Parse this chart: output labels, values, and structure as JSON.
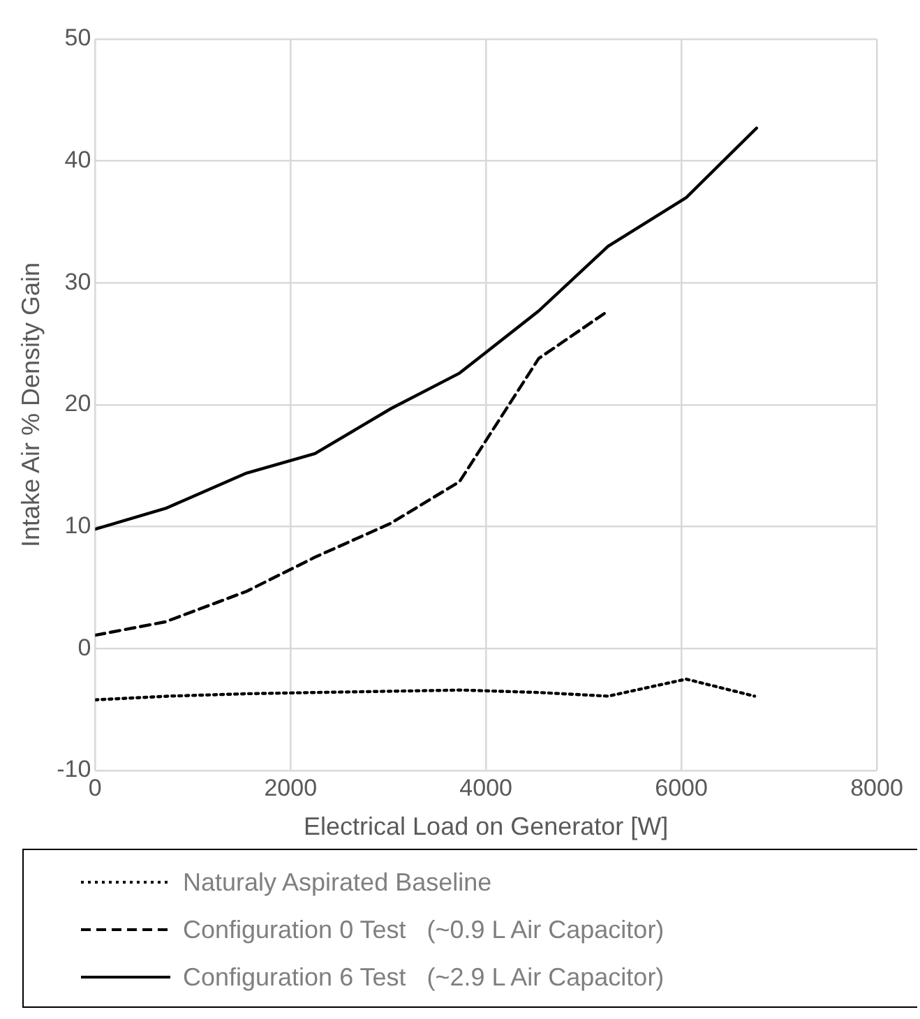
{
  "chart_data": {
    "type": "line",
    "xlabel": "Electrical Load on Generator [W]",
    "ylabel": "Intake Air % Density Gain",
    "xlim": [
      0,
      8000
    ],
    "xticks": [
      0,
      2000,
      4000,
      6000,
      8000
    ],
    "ylim": [
      -10,
      50
    ],
    "yticks": [
      -10,
      0,
      10,
      20,
      30,
      40,
      50
    ],
    "grid": true,
    "legend": "bottom",
    "marker": "none",
    "series": [
      {
        "name": "Naturaly Aspirated Baseline",
        "color": "#000000",
        "line_style": "dotted",
        "x": [
          0,
          750,
          1550,
          2250,
          3000,
          3750,
          4550,
          5250,
          6050,
          6750
        ],
        "values": [
          -4.2,
          -3.9,
          -3.7,
          -3.6,
          -3.5,
          -3.4,
          -3.6,
          -3.9,
          -2.5,
          -3.9
        ]
      },
      {
        "name": "Configuration 0 Test   (~0.9 L Air Capacitor)",
        "color": "#000000",
        "line_style": "dashed",
        "x": [
          0,
          720,
          1550,
          2250,
          3030,
          3730,
          4540,
          5250
        ],
        "values": [
          1.1,
          2.2,
          4.7,
          7.5,
          10.3,
          13.7,
          23.8,
          27.7
        ]
      },
      {
        "name": "Configuration 6 Test   (~2.9 L Air Capacitor)",
        "color": "#000000",
        "line_style": "solid",
        "x": [
          0,
          720,
          1550,
          2250,
          3030,
          3730,
          4540,
          5250,
          6050,
          6770
        ],
        "values": [
          9.8,
          11.5,
          14.4,
          16.0,
          19.7,
          22.6,
          27.7,
          33.0,
          37.0,
          42.7
        ]
      }
    ]
  }
}
